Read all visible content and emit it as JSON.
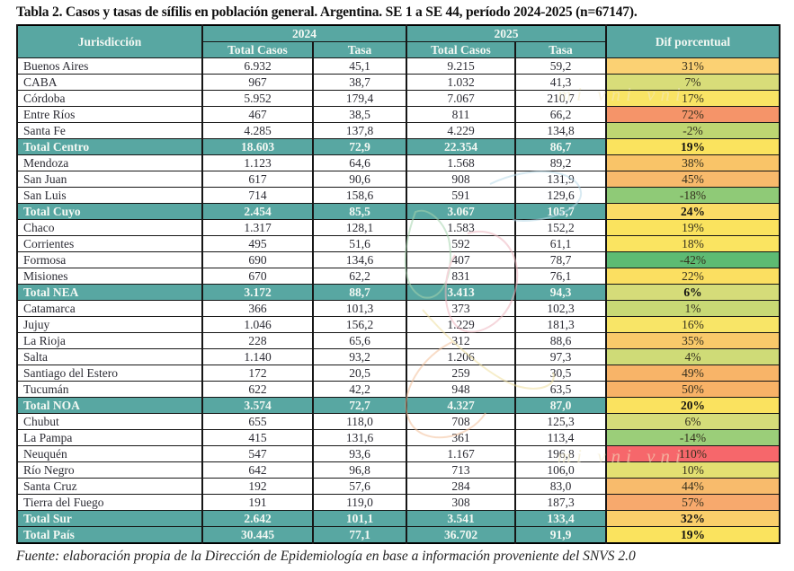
{
  "title": "Tabla 2. Casos y tasas de sífilis en población general. Argentina. SE 1 a SE 44, período 2024-2025 (n=67147).",
  "source": "Fuente: elaboración propia de la Dirección de Epidemiología en base a información proveniente del SNVS 2.0",
  "watermark_fragment": "mi vni vni",
  "colors": {
    "header_bg": "#58A7A2",
    "header_text": "#F3F8F3",
    "total_row_bg": "#58A7A2",
    "border": "#161616",
    "scale_green": "#63BE7B",
    "scale_yellow": "#FFEB84",
    "scale_red": "#F8696B"
  },
  "table": {
    "columns": {
      "jurisdiccion": "Jurisdicción",
      "year_2024": "2024",
      "year_2025": "2025",
      "total_casos": "Total Casos",
      "tasa": "Tasa",
      "dif": "Dif porcentual"
    },
    "rows": [
      {
        "name": "Buenos Aires",
        "casos_2024": "6.932",
        "tasa_2024": "45,1",
        "casos_2025": "9.215",
        "tasa_2025": "59,2",
        "dif": "31%",
        "dif_color": "#FBD173",
        "total": false
      },
      {
        "name": "CABA",
        "casos_2024": "967",
        "tasa_2024": "38,7",
        "casos_2025": "1.032",
        "tasa_2025": "41,3",
        "dif": "7%",
        "dif_color": "#D8DD79",
        "total": false
      },
      {
        "name": "Córdoba",
        "casos_2024": "5.952",
        "tasa_2024": "179,4",
        "casos_2025": "7.067",
        "tasa_2025": "210,7",
        "dif": "17%",
        "dif_color": "#F9E465",
        "total": false
      },
      {
        "name": "Entre Ríos",
        "casos_2024": "467",
        "tasa_2024": "38,5",
        "casos_2025": "811",
        "tasa_2025": "66,2",
        "dif": "72%",
        "dif_color": "#F59469",
        "total": false
      },
      {
        "name": "Santa Fe",
        "casos_2024": "4.285",
        "tasa_2024": "137,8",
        "casos_2025": "4.229",
        "tasa_2025": "134,8",
        "dif": "-2%",
        "dif_color": "#BED672",
        "total": false
      },
      {
        "name": "Total Centro",
        "casos_2024": "18.603",
        "tasa_2024": "72,9",
        "casos_2025": "22.354",
        "tasa_2025": "86,7",
        "dif": "19%",
        "dif_color": "#FAE35E",
        "total": true
      },
      {
        "name": "Mendoza",
        "casos_2024": "1.123",
        "tasa_2024": "64,6",
        "casos_2025": "1.568",
        "tasa_2025": "89,2",
        "dif": "38%",
        "dif_color": "#F9C468",
        "total": false
      },
      {
        "name": "San Juan",
        "casos_2024": "617",
        "tasa_2024": "90,6",
        "casos_2025": "908",
        "tasa_2025": "131,9",
        "dif": "45%",
        "dif_color": "#F8BA6C",
        "total": false
      },
      {
        "name": "San Luis",
        "casos_2024": "714",
        "tasa_2024": "158,6",
        "casos_2025": "591",
        "tasa_2025": "129,6",
        "dif": "-18%",
        "dif_color": "#8FCA77",
        "total": false
      },
      {
        "name": "Total Cuyo",
        "casos_2024": "2.454",
        "tasa_2024": "85,5",
        "casos_2025": "3.067",
        "tasa_2025": "105,7",
        "dif": "24%",
        "dif_color": "#FBDC66",
        "total": true
      },
      {
        "name": "Chaco",
        "casos_2024": "1.317",
        "tasa_2024": "128,1",
        "casos_2025": "1.583",
        "tasa_2025": "152,2",
        "dif": "19%",
        "dif_color": "#FAE35E",
        "total": false
      },
      {
        "name": "Corrientes",
        "casos_2024": "495",
        "tasa_2024": "51,6",
        "casos_2025": "592",
        "tasa_2025": "61,1",
        "dif": "18%",
        "dif_color": "#FAE461",
        "total": false
      },
      {
        "name": "Formosa",
        "casos_2024": "690",
        "tasa_2024": "134,6",
        "casos_2025": "407",
        "tasa_2025": "78,7",
        "dif": "-42%",
        "dif_color": "#5DBB73",
        "total": false
      },
      {
        "name": "Misiones",
        "casos_2024": "670",
        "tasa_2024": "62,2",
        "casos_2025": "831",
        "tasa_2025": "76,1",
        "dif": "22%",
        "dif_color": "#FBDF61",
        "total": false
      },
      {
        "name": "Total NEA",
        "casos_2024": "3.172",
        "tasa_2024": "88,7",
        "casos_2025": "3.413",
        "tasa_2025": "94,3",
        "dif": "6%",
        "dif_color": "#D5DC79",
        "total": true
      },
      {
        "name": "Catamarca",
        "casos_2024": "366",
        "tasa_2024": "101,3",
        "casos_2025": "373",
        "tasa_2025": "102,3",
        "dif": "1%",
        "dif_color": "#C8D975",
        "total": false
      },
      {
        "name": "Jujuy",
        "casos_2024": "1.046",
        "tasa_2024": "156,2",
        "casos_2025": "1.229",
        "tasa_2025": "181,3",
        "dif": "16%",
        "dif_color": "#F8E567",
        "total": false
      },
      {
        "name": "La Rioja",
        "casos_2024": "228",
        "tasa_2024": "65,6",
        "casos_2025": "312",
        "tasa_2025": "88,6",
        "dif": "35%",
        "dif_color": "#F9C96A",
        "total": false
      },
      {
        "name": "Salta",
        "casos_2024": "1.140",
        "tasa_2024": "93,2",
        "casos_2025": "1.206",
        "tasa_2025": "97,3",
        "dif": "4%",
        "dif_color": "#CFDB77",
        "total": false
      },
      {
        "name": "Santiago del Estero",
        "casos_2024": "172",
        "tasa_2024": "20,5",
        "casos_2025": "259",
        "tasa_2025": "30,5",
        "dif": "49%",
        "dif_color": "#F8B468",
        "total": false
      },
      {
        "name": "Tucumán",
        "casos_2024": "622",
        "tasa_2024": "42,2",
        "casos_2025": "948",
        "tasa_2025": "63,5",
        "dif": "50%",
        "dif_color": "#F8B267",
        "total": false
      },
      {
        "name": "Total NOA",
        "casos_2024": "3.574",
        "tasa_2024": "72,7",
        "casos_2025": "4.327",
        "tasa_2025": "87,0",
        "dif": "20%",
        "dif_color": "#FAE25F",
        "total": true
      },
      {
        "name": "Chubut",
        "casos_2024": "655",
        "tasa_2024": "118,0",
        "casos_2025": "708",
        "tasa_2025": "125,3",
        "dif": "6%",
        "dif_color": "#D5DC79",
        "total": false
      },
      {
        "name": "La Pampa",
        "casos_2024": "415",
        "tasa_2024": "131,6",
        "casos_2025": "361",
        "tasa_2025": "113,4",
        "dif": "-14%",
        "dif_color": "#9BCE79",
        "total": false
      },
      {
        "name": "Neuquén",
        "casos_2024": "547",
        "tasa_2024": "93,6",
        "casos_2025": "1.167",
        "tasa_2025": "196,8",
        "dif": "110%",
        "dif_color": "#F6676B",
        "total": false
      },
      {
        "name": "Río Negro",
        "casos_2024": "642",
        "tasa_2024": "96,8",
        "casos_2025": "713",
        "tasa_2025": "106,0",
        "dif": "10%",
        "dif_color": "#E3E072",
        "total": false
      },
      {
        "name": "Santa Cruz",
        "casos_2024": "192",
        "tasa_2024": "57,6",
        "casos_2025": "284",
        "tasa_2025": "83,0",
        "dif": "44%",
        "dif_color": "#F8BB6C",
        "total": false
      },
      {
        "name": "Tierra del Fuego",
        "casos_2024": "191",
        "tasa_2024": "119,0",
        "casos_2025": "308",
        "tasa_2025": "187,3",
        "dif": "57%",
        "dif_color": "#F7A96D",
        "total": false
      },
      {
        "name": "Total Sur",
        "casos_2024": "2.642",
        "tasa_2024": "101,1",
        "casos_2025": "3.541",
        "tasa_2025": "133,4",
        "dif": "32%",
        "dif_color": "#FACF6B",
        "total": true
      },
      {
        "name": "Total País",
        "casos_2024": "30.445",
        "tasa_2024": "77,1",
        "casos_2025": "36.702",
        "tasa_2025": "91,9",
        "dif": "19%",
        "dif_color": "#FAE35E",
        "total": true
      }
    ]
  }
}
